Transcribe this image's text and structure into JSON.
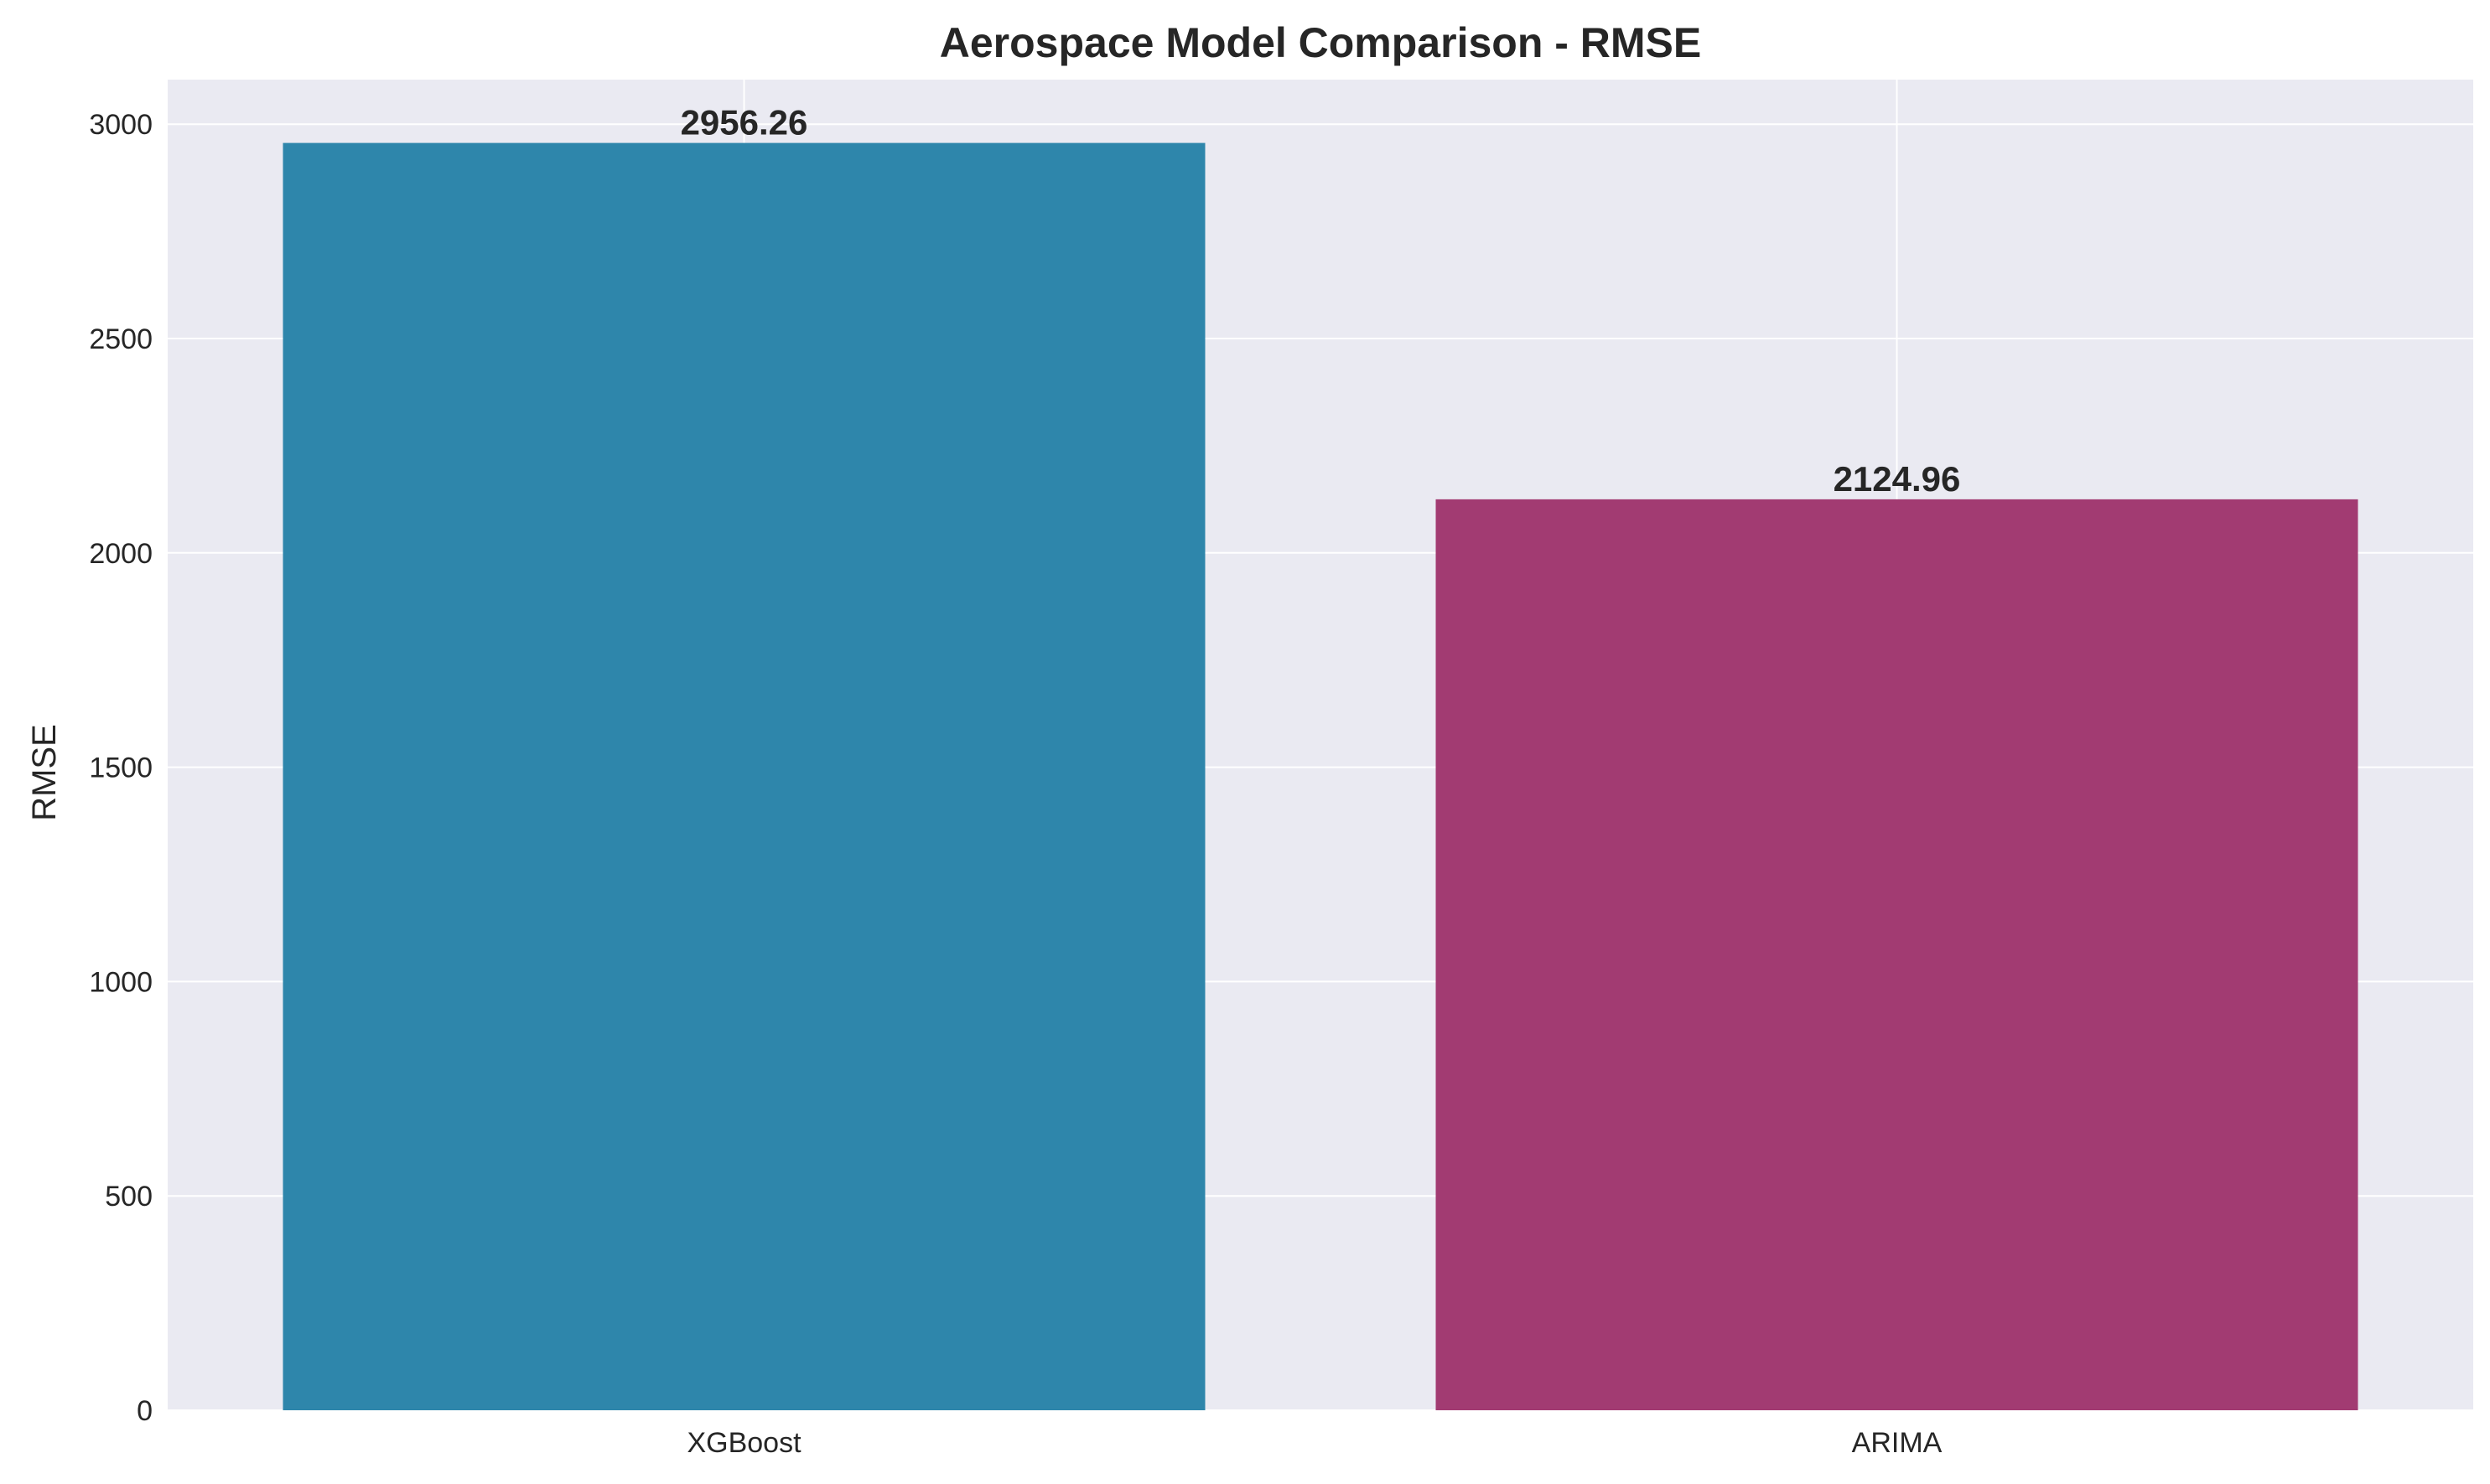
{
  "chart_data": {
    "type": "bar",
    "title": "Aerospace Model Comparison - RMSE",
    "xlabel": "",
    "ylabel": "RMSE",
    "categories": [
      "XGBoost",
      "ARIMA"
    ],
    "values": [
      2956.26,
      2124.96
    ],
    "value_labels": [
      "2956.26",
      "2124.96"
    ],
    "colors": [
      "#2E86AB",
      "#A23B72"
    ],
    "ylim": [
      0,
      3104
    ],
    "yticks": [
      0,
      500,
      1000,
      1500,
      2000,
      2500,
      3000
    ],
    "ytick_labels": [
      "0",
      "500",
      "1000",
      "1500",
      "2000",
      "2500",
      "3000"
    ],
    "grid": true,
    "background": "#EAEAF2"
  }
}
